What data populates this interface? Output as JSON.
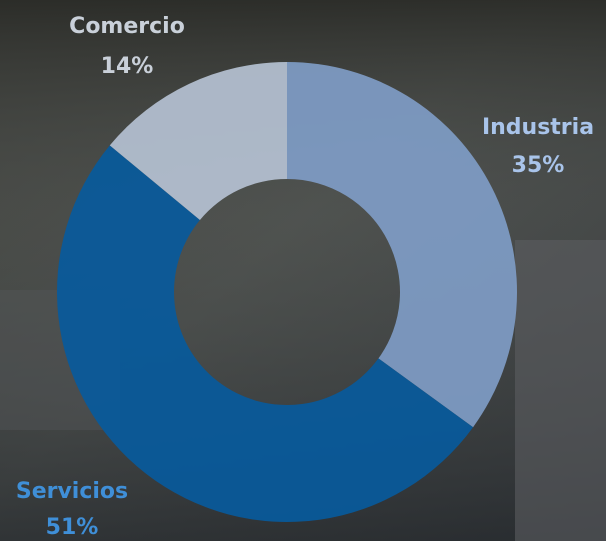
{
  "chart_data": {
    "type": "donut",
    "categories": [
      "Industria",
      "Servicios",
      "Comercio"
    ],
    "values": [
      35,
      51,
      14
    ],
    "value_labels": [
      "35%",
      "51%",
      "14%"
    ],
    "colors": [
      "#7f9cc6",
      "#085a9c",
      "#b5c1d2"
    ],
    "label_colors": [
      "#a9c4ea",
      "#3f8fd8",
      "#c9d0d9"
    ]
  }
}
